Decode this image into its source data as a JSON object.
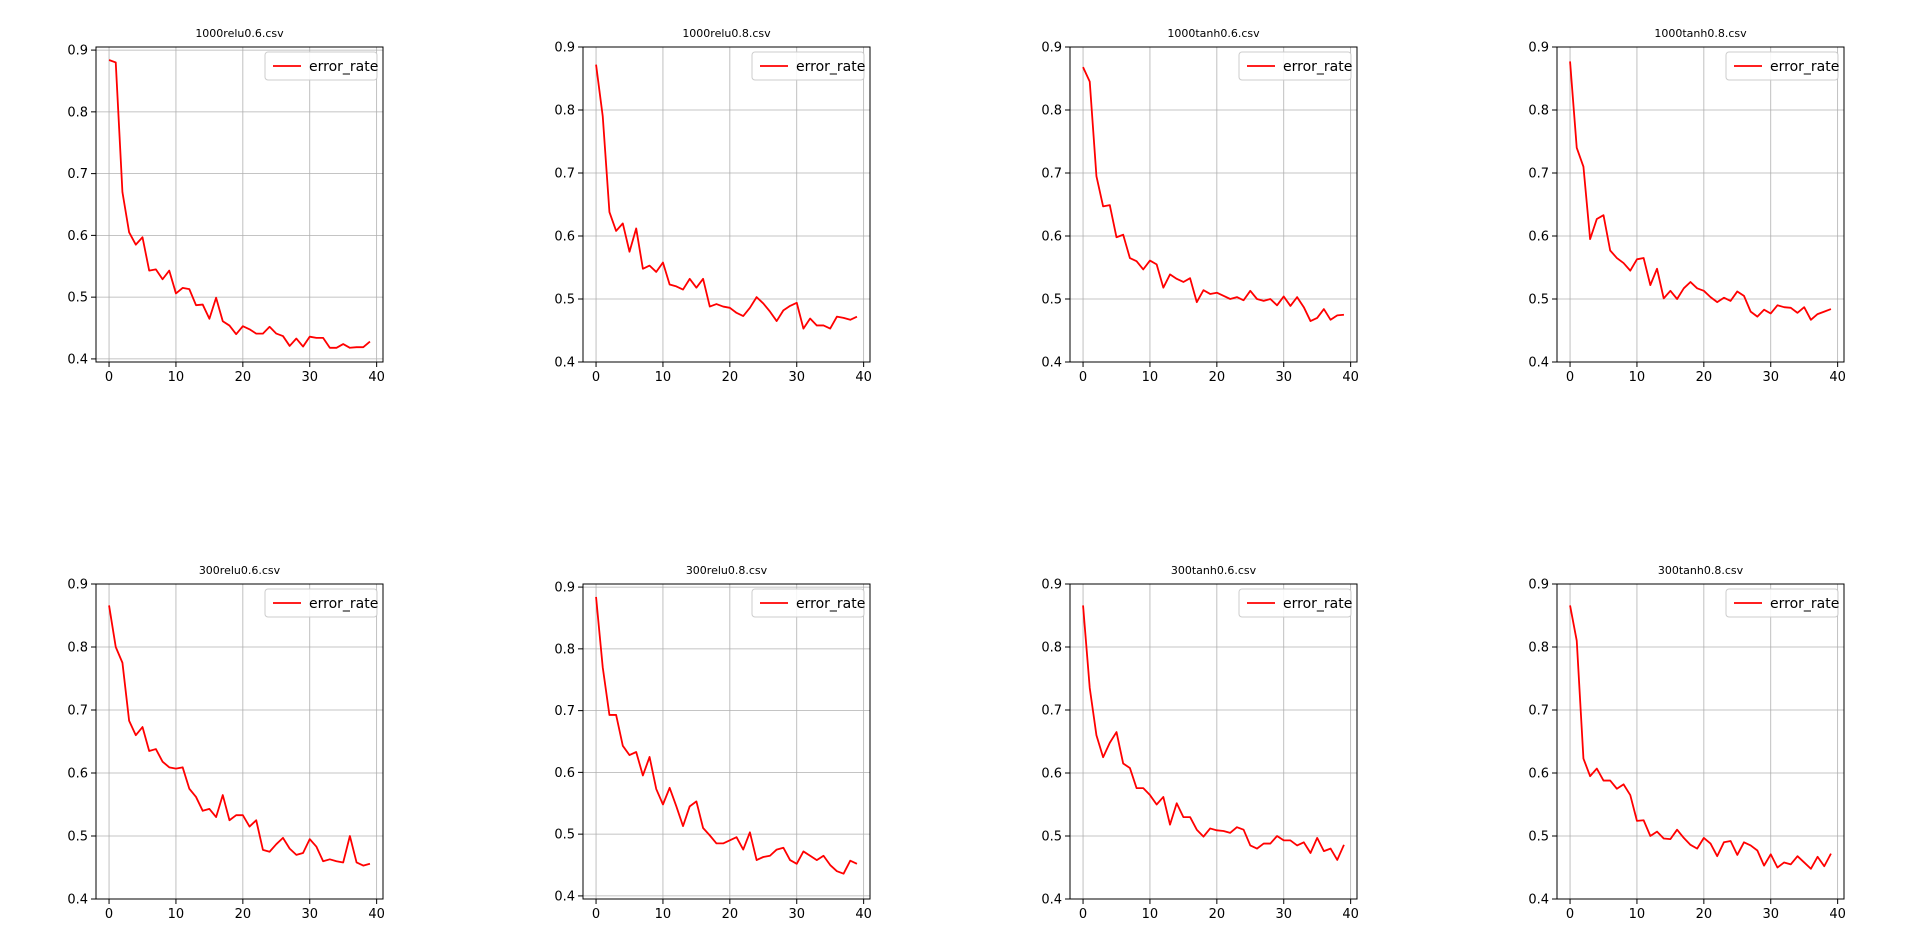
{
  "figure": {
    "background": "#ffffff",
    "line_color": "#ff0000",
    "grid_color": "#b0b0b0"
  },
  "chart_data": [
    {
      "type": "line",
      "title": "1000relu0.6.csv",
      "ylim": [
        0.395,
        0.905
      ],
      "xlim": [
        -1.95,
        40.95
      ],
      "xticks": [
        0,
        10,
        20,
        30,
        40
      ],
      "yticks": [
        0.4,
        0.5,
        0.6,
        0.7,
        0.8,
        0.9
      ],
      "grid": true,
      "legend": "top-right",
      "series": [
        {
          "name": "error_rate",
          "x": [
            0,
            1,
            2,
            3,
            4,
            5,
            6,
            7,
            8,
            9,
            10,
            11,
            12,
            13,
            14,
            15,
            16,
            17,
            18,
            19,
            20,
            21,
            22,
            23,
            24,
            25,
            26,
            27,
            28,
            29,
            30,
            31,
            32,
            33,
            34,
            35,
            36,
            37,
            38,
            39
          ],
          "values": [
            0.884,
            0.88,
            0.67,
            0.605,
            0.585,
            0.597,
            0.543,
            0.545,
            0.529,
            0.543,
            0.506,
            0.515,
            0.513,
            0.487,
            0.488,
            0.465,
            0.499,
            0.461,
            0.454,
            0.44,
            0.453,
            0.448,
            0.441,
            0.441,
            0.452,
            0.441,
            0.437,
            0.421,
            0.433,
            0.42,
            0.436,
            0.434,
            0.434,
            0.418,
            0.418,
            0.424,
            0.418,
            0.419,
            0.419,
            0.428
          ]
        }
      ]
    },
    {
      "type": "line",
      "title": "1000relu0.8.csv",
      "ylim": [
        0.4,
        0.9
      ],
      "xlim": [
        -1.95,
        40.95
      ],
      "xticks": [
        0,
        10,
        20,
        30,
        40
      ],
      "yticks": [
        0.4,
        0.5,
        0.6,
        0.7,
        0.8,
        0.9
      ],
      "grid": true,
      "legend": "top-right",
      "series": [
        {
          "name": "error_rate",
          "x": [
            0,
            1,
            2,
            3,
            4,
            5,
            6,
            7,
            8,
            9,
            10,
            11,
            12,
            13,
            14,
            15,
            16,
            17,
            18,
            19,
            20,
            21,
            22,
            23,
            24,
            25,
            26,
            27,
            28,
            29,
            30,
            31,
            32,
            33,
            34,
            35,
            36,
            37,
            38,
            39
          ],
          "values": [
            0.872,
            0.79,
            0.638,
            0.608,
            0.62,
            0.575,
            0.612,
            0.548,
            0.553,
            0.543,
            0.558,
            0.523,
            0.52,
            0.515,
            0.532,
            0.518,
            0.532,
            0.488,
            0.492,
            0.488,
            0.486,
            0.478,
            0.473,
            0.486,
            0.503,
            0.493,
            0.48,
            0.465,
            0.482,
            0.489,
            0.494,
            0.453,
            0.469,
            0.458,
            0.458,
            0.453,
            0.472,
            0.47,
            0.467,
            0.472
          ]
        }
      ]
    },
    {
      "type": "line",
      "title": "1000tanh0.6.csv",
      "ylim": [
        0.4,
        0.9
      ],
      "xlim": [
        -1.95,
        40.95
      ],
      "xticks": [
        0,
        10,
        20,
        30,
        40
      ],
      "yticks": [
        0.4,
        0.5,
        0.6,
        0.7,
        0.8,
        0.9
      ],
      "grid": true,
      "legend": "top-right",
      "series": [
        {
          "name": "error_rate",
          "x": [
            0,
            1,
            2,
            3,
            4,
            5,
            6,
            7,
            8,
            9,
            10,
            11,
            12,
            13,
            14,
            15,
            16,
            17,
            18,
            19,
            20,
            21,
            22,
            23,
            24,
            25,
            26,
            27,
            28,
            29,
            30,
            31,
            32,
            33,
            34,
            35,
            36,
            37,
            38,
            39
          ],
          "values": [
            0.868,
            0.845,
            0.695,
            0.647,
            0.649,
            0.598,
            0.602,
            0.565,
            0.56,
            0.547,
            0.561,
            0.555,
            0.518,
            0.539,
            0.532,
            0.527,
            0.533,
            0.495,
            0.514,
            0.508,
            0.51,
            0.505,
            0.5,
            0.503,
            0.498,
            0.513,
            0.5,
            0.497,
            0.5,
            0.49,
            0.504,
            0.489,
            0.503,
            0.487,
            0.465,
            0.47,
            0.484,
            0.467,
            0.474,
            0.475
          ]
        }
      ]
    },
    {
      "type": "line",
      "title": "1000tanh0.8.csv",
      "ylim": [
        0.4,
        0.9
      ],
      "xlim": [
        -1.95,
        40.95
      ],
      "xticks": [
        0,
        10,
        20,
        30,
        40
      ],
      "yticks": [
        0.4,
        0.5,
        0.6,
        0.7,
        0.8,
        0.9
      ],
      "grid": true,
      "legend": "top-right",
      "series": [
        {
          "name": "error_rate",
          "x": [
            0,
            1,
            2,
            3,
            4,
            5,
            6,
            7,
            8,
            9,
            10,
            11,
            12,
            13,
            14,
            15,
            16,
            17,
            18,
            19,
            20,
            21,
            22,
            23,
            24,
            25,
            26,
            27,
            28,
            29,
            30,
            31,
            32,
            33,
            34,
            35,
            36,
            37,
            38,
            39
          ],
          "values": [
            0.877,
            0.74,
            0.71,
            0.595,
            0.627,
            0.633,
            0.577,
            0.565,
            0.557,
            0.545,
            0.563,
            0.565,
            0.522,
            0.548,
            0.501,
            0.513,
            0.5,
            0.517,
            0.527,
            0.517,
            0.513,
            0.503,
            0.495,
            0.502,
            0.497,
            0.512,
            0.505,
            0.48,
            0.472,
            0.483,
            0.477,
            0.49,
            0.487,
            0.486,
            0.478,
            0.487,
            0.467,
            0.476,
            0.48,
            0.484
          ]
        }
      ]
    },
    {
      "type": "line",
      "title": "300relu0.6.csv",
      "ylim": [
        0.4,
        0.9
      ],
      "xlim": [
        -1.95,
        40.95
      ],
      "xticks": [
        0,
        10,
        20,
        30,
        40
      ],
      "yticks": [
        0.4,
        0.5,
        0.6,
        0.7,
        0.8,
        0.9
      ],
      "grid": true,
      "legend": "top-right",
      "series": [
        {
          "name": "error_rate",
          "x": [
            0,
            1,
            2,
            3,
            4,
            5,
            6,
            7,
            8,
            9,
            10,
            11,
            12,
            13,
            14,
            15,
            16,
            17,
            18,
            19,
            20,
            21,
            22,
            23,
            24,
            25,
            26,
            27,
            28,
            29,
            30,
            31,
            32,
            33,
            34,
            35,
            36,
            37,
            38,
            39
          ],
          "values": [
            0.866,
            0.8,
            0.775,
            0.683,
            0.66,
            0.673,
            0.635,
            0.638,
            0.618,
            0.609,
            0.607,
            0.609,
            0.575,
            0.562,
            0.54,
            0.543,
            0.53,
            0.565,
            0.525,
            0.533,
            0.533,
            0.515,
            0.525,
            0.478,
            0.475,
            0.487,
            0.497,
            0.48,
            0.47,
            0.473,
            0.495,
            0.483,
            0.46,
            0.463,
            0.46,
            0.458,
            0.5,
            0.458,
            0.453,
            0.456
          ]
        }
      ]
    },
    {
      "type": "line",
      "title": "300relu0.8.csv",
      "ylim": [
        0.395,
        0.905
      ],
      "xlim": [
        -1.95,
        40.95
      ],
      "xticks": [
        0,
        10,
        20,
        30,
        40
      ],
      "yticks": [
        0.4,
        0.5,
        0.6,
        0.7,
        0.8,
        0.9
      ],
      "grid": true,
      "legend": "top-right",
      "series": [
        {
          "name": "error_rate",
          "x": [
            0,
            1,
            2,
            3,
            4,
            5,
            6,
            7,
            8,
            9,
            10,
            11,
            12,
            13,
            14,
            15,
            16,
            17,
            18,
            19,
            20,
            21,
            22,
            23,
            24,
            25,
            26,
            27,
            28,
            29,
            30,
            31,
            32,
            33,
            34,
            35,
            36,
            37,
            38,
            39
          ],
          "values": [
            0.884,
            0.77,
            0.693,
            0.693,
            0.643,
            0.628,
            0.633,
            0.595,
            0.625,
            0.573,
            0.548,
            0.575,
            0.545,
            0.513,
            0.545,
            0.553,
            0.51,
            0.498,
            0.485,
            0.485,
            0.49,
            0.495,
            0.475,
            0.503,
            0.458,
            0.463,
            0.465,
            0.475,
            0.478,
            0.458,
            0.452,
            0.472,
            0.465,
            0.458,
            0.465,
            0.45,
            0.44,
            0.436,
            0.457,
            0.452
          ]
        }
      ]
    },
    {
      "type": "line",
      "title": "300tanh0.6.csv",
      "ylim": [
        0.4,
        0.9
      ],
      "xlim": [
        -1.95,
        40.95
      ],
      "xticks": [
        0,
        10,
        20,
        30,
        40
      ],
      "yticks": [
        0.4,
        0.5,
        0.6,
        0.7,
        0.8,
        0.9
      ],
      "grid": true,
      "legend": "top-right",
      "series": [
        {
          "name": "error_rate",
          "x": [
            0,
            1,
            2,
            3,
            4,
            5,
            6,
            7,
            8,
            9,
            10,
            11,
            12,
            13,
            14,
            15,
            16,
            17,
            18,
            19,
            20,
            21,
            22,
            23,
            24,
            25,
            26,
            27,
            28,
            29,
            30,
            31,
            32,
            33,
            34,
            35,
            36,
            37,
            38,
            39
          ],
          "values": [
            0.866,
            0.735,
            0.66,
            0.625,
            0.648,
            0.665,
            0.615,
            0.608,
            0.576,
            0.576,
            0.565,
            0.55,
            0.562,
            0.518,
            0.552,
            0.53,
            0.53,
            0.51,
            0.499,
            0.512,
            0.509,
            0.508,
            0.505,
            0.514,
            0.51,
            0.485,
            0.48,
            0.488,
            0.488,
            0.5,
            0.493,
            0.493,
            0.485,
            0.49,
            0.473,
            0.497,
            0.476,
            0.48,
            0.462,
            0.486
          ]
        }
      ]
    },
    {
      "type": "line",
      "title": "300tanh0.8.csv",
      "ylim": [
        0.4,
        0.9
      ],
      "xlim": [
        -1.95,
        40.95
      ],
      "xticks": [
        0,
        10,
        20,
        30,
        40
      ],
      "yticks": [
        0.4,
        0.5,
        0.6,
        0.7,
        0.8,
        0.9
      ],
      "grid": true,
      "legend": "top-right",
      "series": [
        {
          "name": "error_rate",
          "x": [
            0,
            1,
            2,
            3,
            4,
            5,
            6,
            7,
            8,
            9,
            10,
            11,
            12,
            13,
            14,
            15,
            16,
            17,
            18,
            19,
            20,
            21,
            22,
            23,
            24,
            25,
            26,
            27,
            28,
            29,
            30,
            31,
            32,
            33,
            34,
            35,
            36,
            37,
            38,
            39
          ],
          "values": [
            0.866,
            0.81,
            0.623,
            0.595,
            0.607,
            0.588,
            0.588,
            0.575,
            0.582,
            0.565,
            0.524,
            0.525,
            0.5,
            0.507,
            0.496,
            0.495,
            0.51,
            0.497,
            0.486,
            0.48,
            0.497,
            0.488,
            0.468,
            0.49,
            0.492,
            0.47,
            0.49,
            0.485,
            0.477,
            0.453,
            0.471,
            0.45,
            0.458,
            0.455,
            0.468,
            0.458,
            0.448,
            0.467,
            0.452,
            0.472
          ]
        }
      ]
    }
  ]
}
